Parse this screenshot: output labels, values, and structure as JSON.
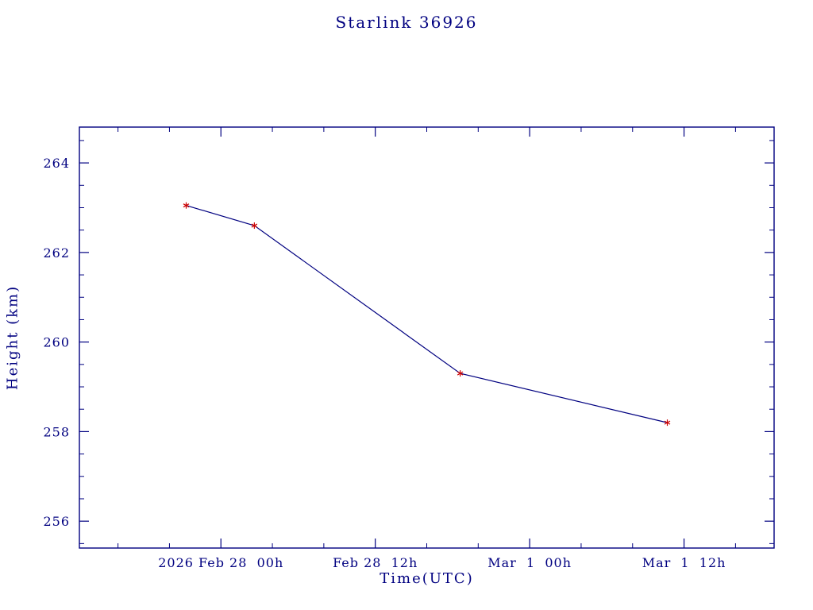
{
  "page": {
    "background_color": "#ffffff",
    "accent_color": "#000080"
  },
  "chart_data": {
    "type": "line",
    "title": "Starlink 36926",
    "xlabel": "Time(UTC)",
    "ylabel": "Height (km)",
    "x_unit": "hours since 2026 Feb 28 00:00 UTC (estimated from axis)",
    "x": [
      -2.7,
      2.6,
      18.6,
      34.7
    ],
    "y": [
      263.05,
      262.6,
      259.3,
      258.2
    ],
    "xlim": [
      -11,
      43
    ],
    "ylim": [
      255.4,
      264.8
    ],
    "x_ticks": [
      {
        "value": 0,
        "label": "2026 Feb 28  00h"
      },
      {
        "value": 12,
        "label": "Feb 28  12h"
      },
      {
        "value": 24,
        "label": "Mar  1  00h"
      },
      {
        "value": 36,
        "label": "Mar  1  12h"
      }
    ],
    "y_ticks": [
      {
        "value": 256,
        "label": "256"
      },
      {
        "value": 258,
        "label": "258"
      },
      {
        "value": 260,
        "label": "260"
      },
      {
        "value": 262,
        "label": "262"
      },
      {
        "value": 264,
        "label": "264"
      }
    ],
    "x_minor_step": 4,
    "y_minor_step": 0.5,
    "grid": false,
    "legend": null,
    "axis_color": "#000080",
    "line_color": "#000080",
    "marker": "asterisk",
    "marker_color": "#cc0000"
  }
}
